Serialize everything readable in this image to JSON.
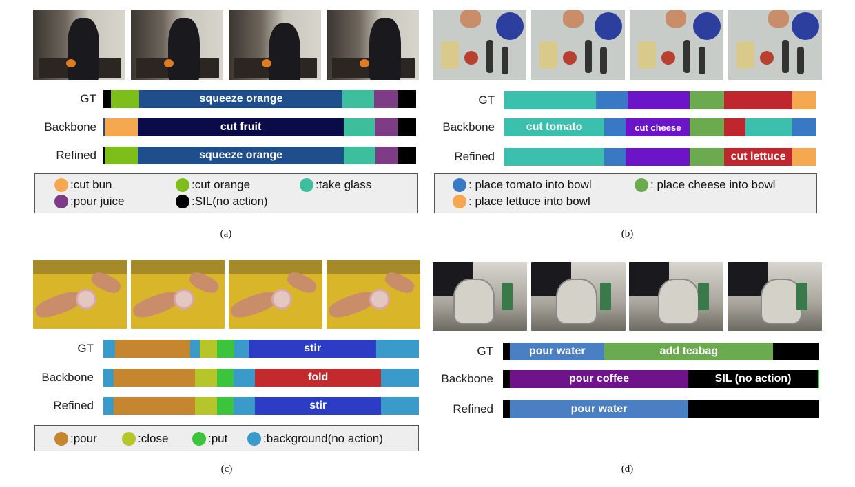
{
  "colors": {
    "navy": "#1F4E8C",
    "dark_navy": "#0B0B4A",
    "teal": "#3DBE9C",
    "purple_a": "#7E3C86",
    "lime": "#7DBE1A",
    "orange": "#F5A84F",
    "black": "#000000",
    "mint": "#3CC0AE",
    "blue": "#3978C5",
    "violet": "#6B14C8",
    "green": "#6BAA4E",
    "red": "#C0262E",
    "brown": "#C6862F",
    "olive": "#B5C52A",
    "bright_green": "#3CC43C",
    "sky": "#3A9AC9",
    "indigo": "#2C3CC4",
    "crimson": "#C22A2E",
    "steel": "#4A7FC4",
    "dark_purple": "#6E1389"
  },
  "panels": {
    "a": {
      "caption": "(a)",
      "frames": [
        {
          "icon": "kitchen-person-frame"
        },
        {
          "icon": "kitchen-person-frame"
        },
        {
          "icon": "kitchen-person-frame"
        },
        {
          "icon": "kitchen-person-frame"
        }
      ],
      "rows": [
        {
          "label": "GT",
          "segments": [
            {
              "color": "#000000",
              "start": 0,
              "end": 2.5,
              "text": ""
            },
            {
              "color": "#7DBE1A",
              "start": 2.5,
              "end": 11.5,
              "text": ""
            },
            {
              "color": "#1F4E8C",
              "start": 11.5,
              "end": 76.5,
              "text": "squeeze orange"
            },
            {
              "color": "#3DBE9C",
              "start": 76.5,
              "end": 86.5,
              "text": ""
            },
            {
              "color": "#7E3C86",
              "start": 86.5,
              "end": 94,
              "text": ""
            },
            {
              "color": "#000000",
              "start": 94,
              "end": 100,
              "text": ""
            }
          ]
        },
        {
          "label": "Backbone",
          "segments": [
            {
              "color": "#1F4E8C",
              "start": 0,
              "end": 0.5,
              "text": ""
            },
            {
              "color": "#F5A84F",
              "start": 0.5,
              "end": 11,
              "text": ""
            },
            {
              "color": "#0B0B4A",
              "start": 11,
              "end": 76.8,
              "text": "cut fruit"
            },
            {
              "color": "#3DBE9C",
              "start": 76.8,
              "end": 86.8,
              "text": ""
            },
            {
              "color": "#7E3C86",
              "start": 86.8,
              "end": 94,
              "text": ""
            },
            {
              "color": "#000000",
              "start": 94,
              "end": 100,
              "text": ""
            }
          ]
        },
        {
          "label": "Refined",
          "segments": [
            {
              "color": "#000000",
              "start": 0,
              "end": 0.4,
              "text": ""
            },
            {
              "color": "#7DBE1A",
              "start": 0.4,
              "end": 11,
              "text": ""
            },
            {
              "color": "#1F4E8C",
              "start": 11,
              "end": 76.8,
              "text": "squeeze orange"
            },
            {
              "color": "#3DBE9C",
              "start": 76.8,
              "end": 87,
              "text": ""
            },
            {
              "color": "#7E3C86",
              "start": 87,
              "end": 94,
              "text": ""
            },
            {
              "color": "#000000",
              "start": 94,
              "end": 100,
              "text": ""
            }
          ]
        }
      ],
      "legend": [
        {
          "color": "#F5A84F",
          "label": ":cut bun"
        },
        {
          "color": "#7DBE1A",
          "label": ":cut orange"
        },
        {
          "color": "#3DBE9C",
          "label": ":take glass"
        },
        {
          "color": "#7E3C86",
          "label": ":pour juice"
        },
        {
          "color": "#000000",
          "label": ":SIL(no action)"
        }
      ]
    },
    "b": {
      "caption": "(b)",
      "frames": [
        {
          "icon": "salad-table-frame"
        },
        {
          "icon": "salad-table-frame"
        },
        {
          "icon": "salad-table-frame"
        },
        {
          "icon": "salad-table-frame"
        }
      ],
      "rows": [
        {
          "label": "GT",
          "segments": [
            {
              "color": "#3CC0AE",
              "start": 0,
              "end": 29.5,
              "text": ""
            },
            {
              "color": "#3978C5",
              "start": 29.5,
              "end": 39.5,
              "text": ""
            },
            {
              "color": "#6B14C8",
              "start": 39.5,
              "end": 59.5,
              "text": ""
            },
            {
              "color": "#6BAA4E",
              "start": 59.5,
              "end": 70.5,
              "text": ""
            },
            {
              "color": "#C0262E",
              "start": 70.5,
              "end": 92.5,
              "text": ""
            },
            {
              "color": "#F5A84F",
              "start": 92.5,
              "end": 100,
              "text": ""
            }
          ]
        },
        {
          "label": "Backbone",
          "segments": [
            {
              "color": "#3CC0AE",
              "start": 0,
              "end": 32,
              "text": "cut tomato"
            },
            {
              "color": "#3978C5",
              "start": 32,
              "end": 39,
              "text": ""
            },
            {
              "color": "#6B14C8",
              "start": 39,
              "end": 59.5,
              "text": "cut cheese",
              "small": true
            },
            {
              "color": "#6BAA4E",
              "start": 59.5,
              "end": 70.5,
              "text": ""
            },
            {
              "color": "#C0262E",
              "start": 70.5,
              "end": 77.5,
              "text": ""
            },
            {
              "color": "#3CC0AE",
              "start": 77.5,
              "end": 92.5,
              "text": ""
            },
            {
              "color": "#3978C5",
              "start": 92.5,
              "end": 100,
              "text": ""
            }
          ]
        },
        {
          "label": "Refined",
          "segments": [
            {
              "color": "#3CC0AE",
              "start": 0,
              "end": 32,
              "text": ""
            },
            {
              "color": "#3978C5",
              "start": 32,
              "end": 39,
              "text": ""
            },
            {
              "color": "#6B14C8",
              "start": 39,
              "end": 59.5,
              "text": ""
            },
            {
              "color": "#6BAA4E",
              "start": 59.5,
              "end": 70.5,
              "text": ""
            },
            {
              "color": "#C0262E",
              "start": 70.5,
              "end": 92.5,
              "text": "cut lettuce"
            },
            {
              "color": "#F5A84F",
              "start": 92.5,
              "end": 100,
              "text": ""
            }
          ]
        }
      ],
      "legend": [
        {
          "color": "#3978C5",
          "label": ": place tomato into bowl"
        },
        {
          "color": "#6BAA4E",
          "label": ": place cheese into bowl"
        },
        {
          "color": "#F5A84F",
          "label": ": place lettuce into bowl"
        }
      ]
    },
    "c": {
      "caption": "(c)",
      "frames": [
        {
          "icon": "hands-cup-frame"
        },
        {
          "icon": "hands-cup-frame"
        },
        {
          "icon": "hands-cup-frame"
        },
        {
          "icon": "hands-cup-frame"
        }
      ],
      "rows": [
        {
          "label": "GT",
          "segments": [
            {
              "color": "#3A9AC9",
              "start": 0,
              "end": 3.8,
              "text": ""
            },
            {
              "color": "#C6862F",
              "start": 3.8,
              "end": 27.5,
              "text": ""
            },
            {
              "color": "#3A9AC9",
              "start": 27.5,
              "end": 30.5,
              "text": ""
            },
            {
              "color": "#B5C52A",
              "start": 30.5,
              "end": 36,
              "text": ""
            },
            {
              "color": "#3CC43C",
              "start": 36,
              "end": 41.5,
              "text": ""
            },
            {
              "color": "#3A9AC9",
              "start": 41.5,
              "end": 46,
              "text": ""
            },
            {
              "color": "#2C3CC4",
              "start": 46,
              "end": 86.5,
              "text": "stir"
            },
            {
              "color": "#3A9AC9",
              "start": 86.5,
              "end": 100,
              "text": ""
            }
          ]
        },
        {
          "label": "Backbone",
          "segments": [
            {
              "color": "#3A9AC9",
              "start": 0,
              "end": 3.3,
              "text": ""
            },
            {
              "color": "#C6862F",
              "start": 3.3,
              "end": 29,
              "text": ""
            },
            {
              "color": "#B5C52A",
              "start": 29,
              "end": 36,
              "text": ""
            },
            {
              "color": "#3CC43C",
              "start": 36,
              "end": 41.3,
              "text": ""
            },
            {
              "color": "#3A9AC9",
              "start": 41.3,
              "end": 48,
              "text": ""
            },
            {
              "color": "#C22A2E",
              "start": 48,
              "end": 88,
              "text": "fold"
            },
            {
              "color": "#3A9AC9",
              "start": 88,
              "end": 100,
              "text": ""
            }
          ]
        },
        {
          "label": "Refined",
          "segments": [
            {
              "color": "#3A9AC9",
              "start": 0,
              "end": 3.3,
              "text": ""
            },
            {
              "color": "#C6862F",
              "start": 3.3,
              "end": 29,
              "text": ""
            },
            {
              "color": "#B5C52A",
              "start": 29,
              "end": 36,
              "text": ""
            },
            {
              "color": "#3CC43C",
              "start": 36,
              "end": 41.3,
              "text": ""
            },
            {
              "color": "#3A9AC9",
              "start": 41.3,
              "end": 48,
              "text": ""
            },
            {
              "color": "#2C3CC4",
              "start": 48,
              "end": 88,
              "text": "stir"
            },
            {
              "color": "#3A9AC9",
              "start": 88,
              "end": 100,
              "text": ""
            }
          ]
        }
      ],
      "legend": [
        {
          "color": "#C6862F",
          "label": ":pour"
        },
        {
          "color": "#B5C52A",
          "label": ":close"
        },
        {
          "color": "#3CC43C",
          "label": ":put"
        },
        {
          "color": "#3A9AC9",
          "label": ":background(no action)"
        }
      ]
    },
    "d": {
      "caption": "(d)",
      "frames": [
        {
          "icon": "kettle-frame"
        },
        {
          "icon": "kettle-frame"
        },
        {
          "icon": "kettle-frame"
        },
        {
          "icon": "kettle-frame"
        }
      ],
      "rows": [
        {
          "label": "GT",
          "segments": [
            {
              "color": "#000000",
              "start": 0,
              "end": 2.2,
              "text": ""
            },
            {
              "color": "#4A7FC4",
              "start": 2.2,
              "end": 32,
              "text": "pour water"
            },
            {
              "color": "#6BAA4E",
              "start": 32,
              "end": 85.5,
              "text": "add teabag"
            },
            {
              "color": "#000000",
              "start": 85.5,
              "end": 100,
              "text": ""
            }
          ]
        },
        {
          "label": "Backbone",
          "segments": [
            {
              "color": "#000000",
              "start": 0,
              "end": 2.2,
              "text": ""
            },
            {
              "color": "#6E1389",
              "start": 2.2,
              "end": 58.5,
              "text": "pour coffee"
            },
            {
              "color": "#000000",
              "start": 58.5,
              "end": 99.6,
              "text": "SIL (no action)"
            },
            {
              "color": "#3CC43C",
              "start": 99.6,
              "end": 100,
              "text": ""
            }
          ]
        },
        {
          "label": "Refined",
          "segments": [
            {
              "color": "#000000",
              "start": 0,
              "end": 2.2,
              "text": ""
            },
            {
              "color": "#4A7FC4",
              "start": 2.2,
              "end": 58.5,
              "text": "pour water"
            },
            {
              "color": "#000000",
              "start": 58.5,
              "end": 100,
              "text": ""
            }
          ]
        }
      ],
      "legend": []
    }
  }
}
